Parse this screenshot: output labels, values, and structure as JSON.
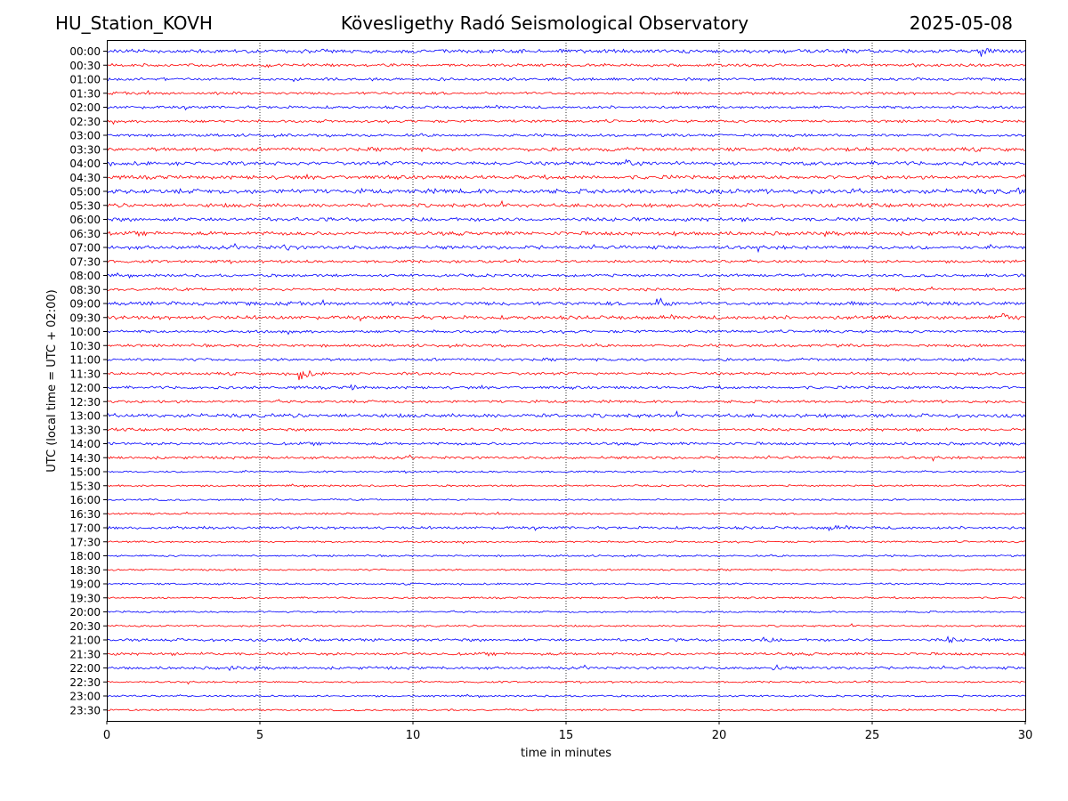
{
  "header": {
    "station": "HU_Station_KOVH",
    "title": "Kövesligethy Radó Seismological Observatory",
    "date": "2025-05-08"
  },
  "chart_data": {
    "type": "line",
    "title": "Kövesligethy Radó Seismological Observatory",
    "xlabel": "time in minutes",
    "ylabel": "UTC (local time = UTC + 02:00)",
    "xlim": [
      0,
      30
    ],
    "x_ticks": [
      0,
      5,
      10,
      15,
      20,
      25,
      30
    ],
    "x_tick_labels": [
      "0",
      "5",
      "10",
      "15",
      "20",
      "25",
      "30"
    ],
    "grid": "vertical dotted at x ticks",
    "row_labels": [
      "00:00",
      "00:30",
      "01:00",
      "01:30",
      "02:00",
      "02:30",
      "03:00",
      "03:30",
      "04:00",
      "04:30",
      "05:00",
      "05:30",
      "06:00",
      "06:30",
      "07:00",
      "07:30",
      "08:00",
      "08:30",
      "09:00",
      "09:30",
      "10:00",
      "10:30",
      "11:00",
      "11:30",
      "12:00",
      "12:30",
      "13:00",
      "13:30",
      "14:00",
      "14:30",
      "15:00",
      "15:30",
      "16:00",
      "16:30",
      "17:00",
      "17:30",
      "18:00",
      "18:30",
      "19:00",
      "19:30",
      "20:00",
      "20:30",
      "21:00",
      "21:30",
      "22:00",
      "22:30",
      "23:00",
      "23:30"
    ],
    "trace_colors": [
      "#0000ff",
      "#ff0000"
    ],
    "trace_amplitude": [
      2,
      1.5,
      1.5,
      1.5,
      1.5,
      1.5,
      1.5,
      2,
      2,
      2,
      2.5,
      2,
      2,
      2,
      2,
      1.5,
      1.5,
      1.5,
      2,
      2,
      1.5,
      1.5,
      1.5,
      1.5,
      1.5,
      1.5,
      2,
      1.5,
      1.5,
      1.5,
      1,
      1,
      1,
      1,
      1.5,
      1,
      1,
      1,
      1,
      1,
      1,
      1,
      1.5,
      1.5,
      1.5,
      1,
      1,
      1
    ],
    "events": [
      {
        "row": 0,
        "minute": 28.6,
        "amplitude": 6
      },
      {
        "row": 8,
        "minute": 17.0,
        "amplitude": 3
      },
      {
        "row": 10,
        "minute": 29.8,
        "amplitude": 3
      },
      {
        "row": 14,
        "minute": 5.8,
        "amplitude": 3
      },
      {
        "row": 18,
        "minute": 18.0,
        "amplitude": 6
      },
      {
        "row": 19,
        "minute": 29.3,
        "amplitude": 4
      },
      {
        "row": 23,
        "minute": 6.3,
        "amplitude": 9
      },
      {
        "row": 24,
        "minute": 8.0,
        "amplitude": 2
      },
      {
        "row": 34,
        "minute": 23.6,
        "amplitude": 3
      },
      {
        "row": 42,
        "minute": 21.5,
        "amplitude": 2.5
      },
      {
        "row": 42,
        "minute": 27.5,
        "amplitude": 3
      },
      {
        "row": 44,
        "minute": 4.0,
        "amplitude": 2
      },
      {
        "row": 44,
        "minute": 21.8,
        "amplitude": 3
      }
    ]
  }
}
